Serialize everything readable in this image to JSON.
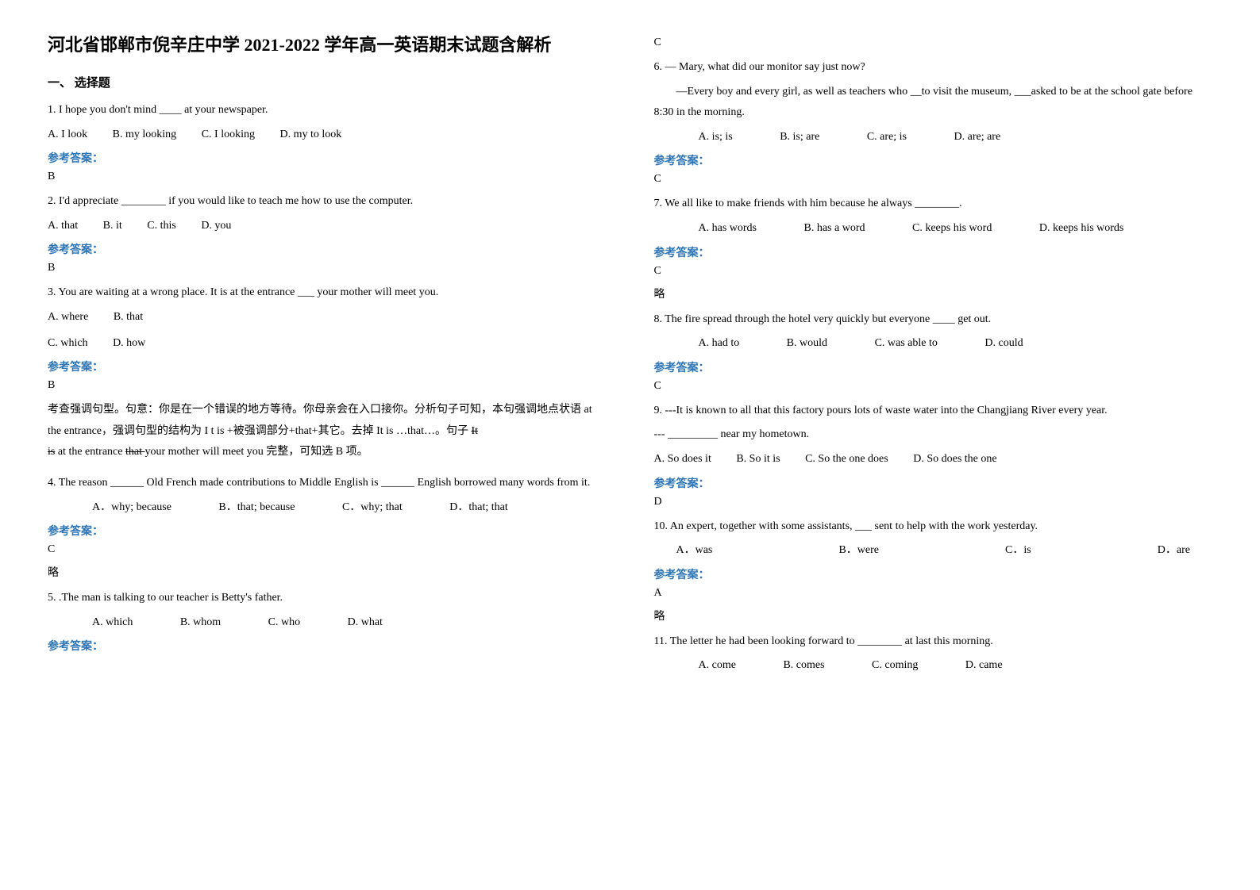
{
  "title": "河北省邯郸市倪辛庄中学 2021-2022 学年高一英语期末试题含解析",
  "section1": "一、 选择题",
  "q1": {
    "text": "1. I hope you don't mind ____ at your newspaper.",
    "opts": {
      "a": "A. I look",
      "b": "B. my looking",
      "c": "C. I looking",
      "d": "D. my to look"
    },
    "ansLabel": "参考答案：",
    "ans": "B"
  },
  "q2": {
    "text": "2. I'd appreciate ________ if you would like to teach me how to use the computer.",
    "opts": {
      "a": "A. that",
      "b": "B. it",
      "c": "C. this",
      "d": "D. you"
    },
    "ansLabel": "参考答案：",
    "ans": "B"
  },
  "q3": {
    "text": "3. You are waiting at a wrong place. It is at the entrance ___ your mother will meet you.",
    "opts": {
      "a": "A. where",
      "b": "B. that",
      "c": "C. which",
      "d": "D. how"
    },
    "ansLabel": "参考答案：",
    "ans": "B",
    "explain1": "考查强调句型。句意：你是在一个错误的地方等待。你母亲会在入口接你。分析句子可知，本句强调地点状语 at the entrance，强调句型的结构为 I t is +被强调部分+that+其它。去掉 It is …that…。句子 ",
    "strike1": "It ",
    "strike2": "is",
    "explain2": " at the entrance ",
    "strike3": "that ",
    "explain3": "your mother will meet you 完整，可知选 B 项。"
  },
  "q4": {
    "text": "4. The reason ______ Old French made contributions to Middle English is ______ English borrowed many words from it.",
    "opts": {
      "a": "A．why; because",
      "b": "B．that; because",
      "c": "C．why; that",
      "d": "D．that; that"
    },
    "ansLabel": "参考答案：",
    "ans": "C",
    "extra": "略"
  },
  "q5": {
    "text": "5. .The man        is talking to our teacher is Betty's father.",
    "opts": {
      "a": "A. which",
      "b": "B. whom",
      "c": "C. who",
      "d": "D. what"
    },
    "ansLabel": "参考答案：",
    "ans": "C"
  },
  "q6": {
    "text": "6. — Mary, what did our monitor say just now?",
    "text2": "—Every boy and every girl, as well as teachers who __to visit the museum, ___asked to be at the school gate before 8:30 in the morning.",
    "opts": {
      "a": "A. is; is",
      "b": "B. is; are",
      "c": "C. are; is",
      "d": "D. are; are"
    },
    "ansLabel": "参考答案：",
    "ans": "C"
  },
  "q7": {
    "text": "7. We all like to make friends with him because he always ________.",
    "opts": {
      "a": "A. has words",
      "b": "B. has a word",
      "c": "C. keeps his word",
      "d": "D. keeps his words"
    },
    "ansLabel": "参考答案：",
    "ans": "C",
    "extra": "略"
  },
  "q8": {
    "text": "8. The fire spread through the hotel very quickly but everyone ____ get out.",
    "opts": {
      "a": "A. had to",
      "b": "B. would",
      "c": "C. was able to",
      "d": "D. could"
    },
    "ansLabel": "参考答案：",
    "ans": "C"
  },
  "q9": {
    "text": "9. ---It is known to all that this factory pours lots of waste water into the Changjiang River every year.",
    "text2": "--- _________ near my hometown.",
    "opts": {
      "a": "A. So does it",
      "b": "B. So it is",
      "c": "C. So the one does",
      "d": "D. So does the one"
    },
    "ansLabel": "参考答案：",
    "ans": "D"
  },
  "q10": {
    "text": "10. An expert, together with some assistants, ___ sent to help with the work yesterday.",
    "opts": {
      "a": "A．was",
      "b": "B．were",
      "c": "C．is",
      "d": "D．are"
    },
    "ansLabel": "参考答案：",
    "ans": "A",
    "extra": "略"
  },
  "q11": {
    "text": "11. The letter he had been looking forward to ________ at last this morning.",
    "opts": {
      "a": "A. come",
      "b": "B. comes",
      "c": "C. coming",
      "d": "D. came"
    }
  }
}
